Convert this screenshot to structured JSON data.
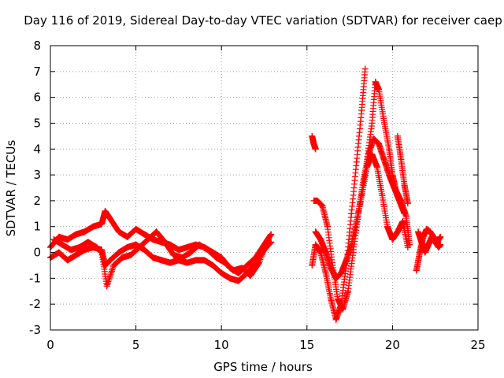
{
  "chart_data": {
    "type": "scatter",
    "title": "Day 116 of 2019, Sidereal Day-to-day VTEC variation (SDTVAR) for receiver caep",
    "xlabel": "GPS time / hours",
    "ylabel": "SDTVAR / TECUs",
    "xlim": [
      0,
      25
    ],
    "ylim": [
      -3,
      8
    ],
    "xticks": [
      0,
      5,
      10,
      15,
      20,
      25
    ],
    "yticks": [
      -3,
      -2,
      -1,
      0,
      1,
      2,
      3,
      4,
      5,
      6,
      7,
      8
    ],
    "grid": true,
    "marker": "+",
    "series": [
      {
        "name": "SDTVAR",
        "color": "#ff0000",
        "tracks": [
          {
            "x": [
              0.0,
              0.5,
              1.0,
              1.5,
              2.0,
              2.5,
              3.0,
              3.2,
              3.5,
              4.0,
              4.5,
              5.0,
              5.5,
              6.0,
              6.5,
              7.0,
              7.5,
              8.0,
              8.5,
              9.0,
              9.5,
              10.0,
              10.5,
              11.0,
              11.5,
              12.0,
              12.5,
              12.9
            ],
            "y": [
              0.2,
              0.6,
              0.5,
              0.7,
              0.8,
              1.0,
              1.1,
              1.6,
              1.3,
              0.8,
              0.6,
              0.9,
              0.7,
              0.5,
              0.4,
              0.3,
              0.1,
              0.2,
              0.3,
              0.2,
              0.0,
              -0.2,
              -0.6,
              -0.8,
              -0.5,
              -0.2,
              0.3,
              0.7
            ]
          },
          {
            "x": [
              0.0,
              0.5,
              1.0,
              1.5,
              2.0,
              2.5,
              3.0,
              3.2,
              3.5,
              4.0,
              4.5,
              5.0,
              5.5,
              6.0,
              6.5,
              7.0,
              7.5,
              8.0,
              8.5,
              9.0,
              9.5,
              10.0,
              10.5,
              11.0,
              11.5,
              12.0,
              12.5,
              12.9
            ],
            "y": [
              -0.2,
              0.0,
              -0.3,
              -0.1,
              0.1,
              0.2,
              0.1,
              -0.5,
              -0.3,
              0.0,
              0.2,
              0.3,
              0.1,
              -0.2,
              -0.3,
              -0.4,
              -0.3,
              -0.4,
              -0.3,
              -0.3,
              -0.5,
              -0.8,
              -1.0,
              -1.1,
              -0.8,
              -0.4,
              0.1,
              0.4
            ]
          },
          {
            "x": [
              0.2,
              0.7,
              1.2,
              1.7,
              2.2,
              2.7,
              3.0,
              3.3,
              3.7,
              4.2,
              4.7,
              5.2,
              5.7,
              6.2,
              6.7,
              7.2,
              7.7,
              8.2,
              8.7,
              9.2,
              9.7,
              10.2,
              10.7,
              11.2,
              11.7,
              12.2,
              12.7
            ],
            "y": [
              0.5,
              0.3,
              0.1,
              0.2,
              0.4,
              0.2,
              0.0,
              -1.3,
              -0.5,
              -0.2,
              -0.1,
              0.2,
              0.5,
              0.8,
              0.4,
              -0.1,
              -0.2,
              0.0,
              0.3,
              0.1,
              -0.2,
              -0.4,
              -0.7,
              -0.6,
              -0.9,
              -0.4,
              0.5
            ]
          },
          {
            "x": [
              15.3,
              15.4,
              15.5
            ],
            "y": [
              4.5,
              4.2,
              4.0
            ]
          },
          {
            "x": [
              15.3,
              15.5,
              15.8,
              16.1,
              16.4,
              16.7,
              17.0,
              17.3,
              17.6,
              17.9,
              18.2,
              18.4
            ],
            "y": [
              -0.5,
              0.3,
              0.0,
              -0.8,
              -1.8,
              -2.6,
              -2.0,
              -0.5,
              1.5,
              3.5,
              5.5,
              7.1
            ]
          },
          {
            "x": [
              15.4,
              15.6,
              15.9,
              16.2,
              16.5,
              16.8,
              17.1,
              17.4,
              17.7,
              18.0,
              18.3,
              18.6,
              18.9,
              19.2,
              19.5,
              19.8,
              20.1,
              20.4,
              20.7
            ],
            "y": [
              2.0,
              2.0,
              1.8,
              1.0,
              -0.5,
              -1.8,
              -2.2,
              -1.5,
              0.0,
              1.5,
              2.8,
              3.8,
              4.4,
              4.2,
              3.6,
              3.0,
              2.5,
              2.0,
              1.5
            ]
          },
          {
            "x": [
              15.5,
              15.8,
              16.1,
              16.4,
              16.7,
              17.0,
              17.3,
              17.6,
              17.9,
              18.2,
              18.5,
              18.8,
              19.1,
              19.4,
              19.7,
              20.0,
              20.3,
              20.6,
              20.9
            ],
            "y": [
              0.8,
              0.5,
              0.0,
              -0.6,
              -1.0,
              -0.8,
              -0.3,
              0.3,
              1.2,
              2.2,
              3.3,
              3.8,
              3.3,
              2.2,
              1.0,
              0.5,
              0.8,
              1.2,
              0.2
            ]
          },
          {
            "x": [
              18.5,
              18.8,
              19.0,
              19.2,
              19.5,
              19.8,
              20.0,
              20.2,
              20.5,
              20.8,
              21.0
            ],
            "y": [
              3.5,
              5.0,
              6.6,
              6.3,
              5.1,
              4.0,
              3.0,
              2.4,
              2.0,
              1.4,
              0.3
            ]
          },
          {
            "x": [
              20.3,
              20.5,
              20.7,
              20.9
            ],
            "y": [
              4.5,
              3.6,
              2.6,
              1.9
            ]
          },
          {
            "x": [
              21.4,
              21.6,
              21.8,
              22.0,
              22.2,
              22.4,
              22.6,
              22.8
            ],
            "y": [
              -0.7,
              0.0,
              0.6,
              0.9,
              0.8,
              0.6,
              0.4,
              0.6
            ]
          },
          {
            "x": [
              21.5,
              21.7,
              21.9,
              22.1,
              22.3,
              22.5,
              22.7,
              22.8
            ],
            "y": [
              0.8,
              0.4,
              0.0,
              0.3,
              0.6,
              0.4,
              0.2,
              0.3
            ]
          }
        ]
      }
    ]
  }
}
